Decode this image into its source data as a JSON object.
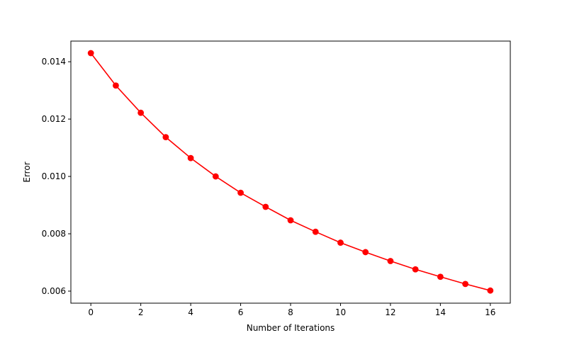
{
  "chart_data": {
    "type": "line",
    "xlabel": "Number of Iterations",
    "ylabel": "Error",
    "xlim": [
      -0.8,
      16.8
    ],
    "ylim": [
      0.00558,
      0.01472
    ],
    "xticks": [
      0,
      2,
      4,
      6,
      8,
      10,
      12,
      14,
      16
    ],
    "xtick_labels": [
      "0",
      "2",
      "4",
      "6",
      "8",
      "10",
      "12",
      "14",
      "16"
    ],
    "yticks": [
      0.006,
      0.008,
      0.01,
      0.012,
      0.014
    ],
    "ytick_labels": [
      "0.006",
      "0.008",
      "0.010",
      "0.012",
      "0.014"
    ],
    "grid": false,
    "series": [
      {
        "color": "#ff0000",
        "marker": "circle",
        "x": [
          0,
          1,
          2,
          3,
          4,
          5,
          6,
          7,
          8,
          9,
          10,
          11,
          12,
          13,
          14,
          15,
          16
        ],
        "y": [
          0.0143,
          0.01317,
          0.01222,
          0.01137,
          0.01064,
          0.01,
          0.00943,
          0.00894,
          0.00847,
          0.00807,
          0.00769,
          0.00736,
          0.00705,
          0.00676,
          0.0065,
          0.00625,
          0.00602
        ]
      }
    ]
  }
}
